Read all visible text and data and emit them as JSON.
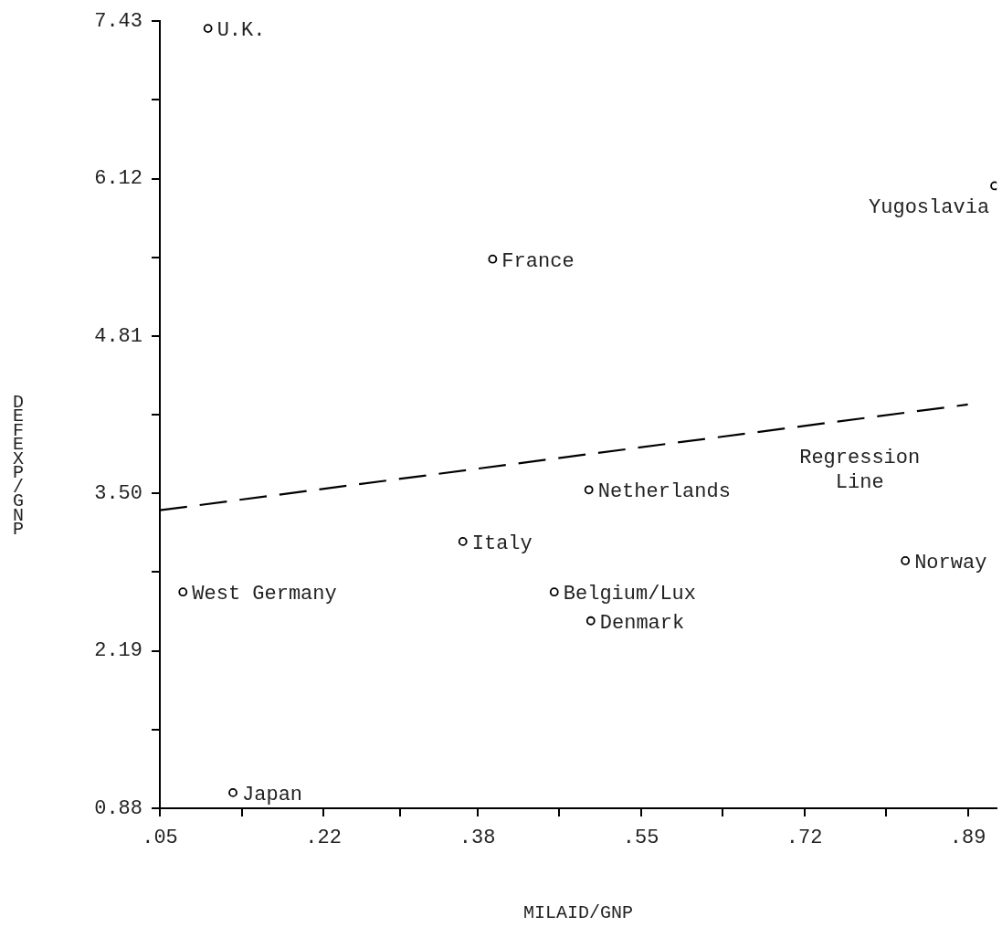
{
  "chart_data": {
    "type": "scatter",
    "xlabel": "MILAID/GNP",
    "ylabel": "DEFEXP/GNP",
    "xlim": [
      0.05,
      0.92
    ],
    "xticks": [
      {
        "value": 0.05,
        "label": ".05"
      },
      {
        "value": 0.135,
        "label": null
      },
      {
        "value": 0.22,
        "label": ".22"
      },
      {
        "value": 0.3,
        "label": null
      },
      {
        "value": 0.38,
        "label": ".38"
      },
      {
        "value": 0.465,
        "label": null
      },
      {
        "value": 0.55,
        "label": ".55"
      },
      {
        "value": 0.635,
        "label": null
      },
      {
        "value": 0.72,
        "label": ".72"
      },
      {
        "value": 0.805,
        "label": null
      },
      {
        "value": 0.89,
        "label": ".89"
      }
    ],
    "ylim": [
      0.88,
      7.43
    ],
    "yticks": [
      {
        "value": 0.88,
        "label": "0.88"
      },
      {
        "value": 1.535,
        "label": null
      },
      {
        "value": 2.19,
        "label": "2.19"
      },
      {
        "value": 2.845,
        "label": null
      },
      {
        "value": 3.5,
        "label": "3.50"
      },
      {
        "value": 4.155,
        "label": null
      },
      {
        "value": 4.81,
        "label": "4.81"
      },
      {
        "value": 5.465,
        "label": null
      },
      {
        "value": 6.12,
        "label": "6.12"
      },
      {
        "value": 6.775,
        "label": null
      },
      {
        "value": 7.43,
        "label": "7.43"
      }
    ],
    "grid": false,
    "legend": false,
    "marker": "circle",
    "series": [
      {
        "name": "U.K.",
        "color": "#000000",
        "x": [
          0.1
        ],
        "values": [
          7.37
        ]
      },
      {
        "name": "Yugoslavia",
        "color": "#000000",
        "x": [
          0.918
        ],
        "values": [
          6.06
        ]
      },
      {
        "name": "France",
        "color": "#000000",
        "x": [
          0.396
        ],
        "values": [
          5.45
        ]
      },
      {
        "name": "Netherlands",
        "color": "#000000",
        "x": [
          0.496
        ],
        "values": [
          3.53
        ]
      },
      {
        "name": "Italy",
        "color": "#000000",
        "x": [
          0.365
        ],
        "values": [
          3.1
        ]
      },
      {
        "name": "West Germany",
        "color": "#000000",
        "x": [
          0.074
        ],
        "values": [
          2.68
        ]
      },
      {
        "name": "Belgium/Lux",
        "color": "#000000",
        "x": [
          0.46
        ],
        "values": [
          2.68
        ]
      },
      {
        "name": "Denmark",
        "color": "#000000",
        "x": [
          0.498
        ],
        "values": [
          2.44
        ]
      },
      {
        "name": "Norway",
        "color": "#000000",
        "x": [
          0.825
        ],
        "values": [
          2.94
        ]
      },
      {
        "name": "Japan",
        "color": "#000000",
        "x": [
          0.126
        ],
        "values": [
          1.01
        ]
      },
      {
        "type": "line",
        "color": "#000000",
        "line_style": "dashed",
        "marker": "none",
        "x": [
          0.05,
          0.89
        ],
        "values": [
          3.36,
          4.24
        ]
      }
    ],
    "annotations": [
      "Regression Line"
    ]
  }
}
